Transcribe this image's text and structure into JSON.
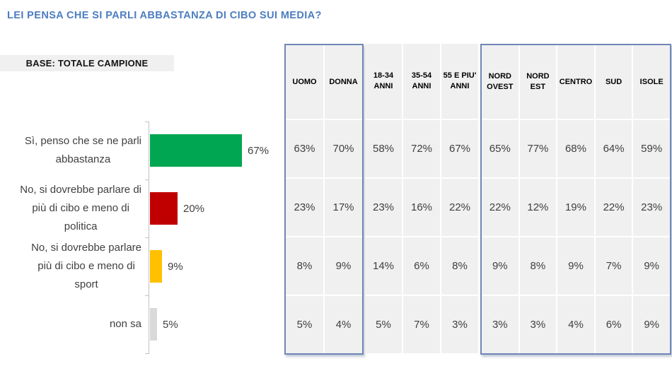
{
  "title": "LEI PENSA CHE SI PARLI ABBASTANZA DI CIBO SUI MEDIA?",
  "base_label": "BASE: TOTALE CAMPIONE",
  "colors": {
    "title_blue": "#4C7DC0",
    "group_border_blue": "#7186B6",
    "cell_gray": "#F0F0F1",
    "bar_green": "#00A651",
    "bar_red": "#C00000",
    "bar_gold": "#FFC000",
    "bar_gray": "#D9D9D9",
    "text_dark": "#404040"
  },
  "chart_data": [
    {
      "type": "bar",
      "orientation": "horizontal",
      "title": "LEI PENSA CHE SI PARLI ABBASTANZA DI CIBO SUI MEDIA?",
      "categories": [
        "Sì, penso che se ne parli\nabbastanza",
        "No, si dovrebbe parlare di\npiù di cibo e meno di\npolitica",
        "No, si dovrebbe parlare\npiù di cibo e meno di\nsport",
        "non sa"
      ],
      "values": [
        67,
        20,
        9,
        5
      ],
      "value_labels": [
        "67%",
        "20%",
        "9%",
        "5%"
      ],
      "bar_colors": [
        "#00A651",
        "#C00000",
        "#FFC000",
        "#D9D9D9"
      ],
      "xlim": [
        0,
        70
      ],
      "grid": false,
      "legend": "none"
    },
    {
      "type": "table",
      "column_headers": [
        "UOMO",
        "DONNA",
        "18-34\nANNI",
        "35-54\nANNI",
        "55 E PIU'\nANNI",
        "NORD\nOVEST",
        "NORD\nEST",
        "CENTRO",
        "SUD",
        "ISOLE"
      ],
      "column_groups": [
        {
          "name": "gender",
          "columns": [
            0,
            1
          ],
          "bordered": true
        },
        {
          "name": "age",
          "columns": [
            2,
            3,
            4
          ],
          "bordered": false
        },
        {
          "name": "region",
          "columns": [
            5,
            6,
            7,
            8,
            9
          ],
          "bordered": true
        }
      ],
      "rows": [
        [
          "63%",
          "70%",
          "58%",
          "72%",
          "67%",
          "65%",
          "77%",
          "68%",
          "64%",
          "59%"
        ],
        [
          "23%",
          "17%",
          "23%",
          "16%",
          "22%",
          "22%",
          "12%",
          "19%",
          "22%",
          "23%"
        ],
        [
          "8%",
          "9%",
          "14%",
          "6%",
          "8%",
          "9%",
          "8%",
          "9%",
          "7%",
          "9%"
        ],
        [
          "5%",
          "4%",
          "5%",
          "7%",
          "3%",
          "3%",
          "3%",
          "4%",
          "6%",
          "9%"
        ]
      ]
    }
  ]
}
